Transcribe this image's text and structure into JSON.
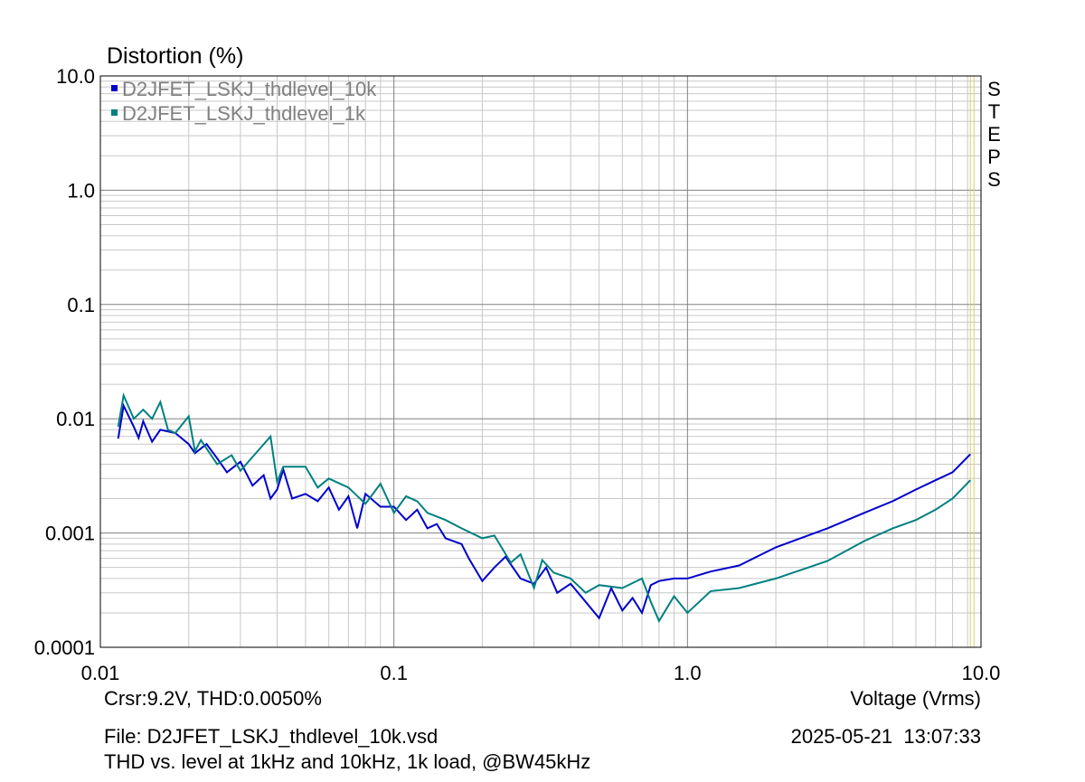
{
  "chart_data": {
    "type": "line",
    "title": "Distortion (%)",
    "x_label": "Voltage (Vrms)",
    "cursor_text": "Crsr:9.2V, THD:0.0050%",
    "cursor_x": 9.2,
    "side_label": "STEPS",
    "file_text": "File: D2JFET_LSKJ_thdlevel_10k.vsd",
    "timestamp": "2025-05-21  13:07:33",
    "subtitle": "THD vs. level at 1kHz and 10kHz, 1k load, @BW45kHz",
    "xscale": "log",
    "yscale": "log",
    "grid": true,
    "legend": "top-left",
    "xlim": [
      0.01,
      10
    ],
    "xticks": [
      0.01,
      0.1,
      {
        "value": 1,
        "label": "1.0"
      },
      {
        "value": 10,
        "label": "10.0"
      }
    ],
    "ylim": [
      0.0001,
      10
    ],
    "yticks": [
      {
        "value": 10,
        "label": "10.0"
      },
      {
        "value": 1,
        "label": "1.0"
      },
      0.1,
      0.01,
      0.001,
      0.0001
    ],
    "series": [
      {
        "name": "D2JFET_LSKJ_thdlevel_10k",
        "color": "#0000cc",
        "x": [
          0.0115,
          0.012,
          0.013,
          0.0135,
          0.014,
          0.015,
          0.016,
          0.018,
          0.02,
          0.021,
          0.023,
          0.025,
          0.027,
          0.03,
          0.033,
          0.036,
          0.038,
          0.04,
          0.042,
          0.045,
          0.05,
          0.055,
          0.06,
          0.065,
          0.07,
          0.075,
          0.08,
          0.09,
          0.1,
          0.11,
          0.12,
          0.13,
          0.14,
          0.15,
          0.17,
          0.18,
          0.2,
          0.22,
          0.24,
          0.27,
          0.3,
          0.33,
          0.36,
          0.4,
          0.45,
          0.5,
          0.55,
          0.6,
          0.65,
          0.7,
          0.75,
          0.8,
          0.9,
          1.0,
          1.2,
          1.5,
          2.0,
          3.0,
          4.0,
          5.0,
          6.0,
          7.0,
          8.0,
          9.2
        ],
        "values": [
          0.0067,
          0.013,
          0.0085,
          0.0068,
          0.0095,
          0.0063,
          0.008,
          0.0075,
          0.006,
          0.005,
          0.006,
          0.0045,
          0.0034,
          0.0042,
          0.0026,
          0.0032,
          0.002,
          0.0024,
          0.0036,
          0.002,
          0.0022,
          0.0019,
          0.0025,
          0.0016,
          0.0021,
          0.0011,
          0.0022,
          0.0017,
          0.0017,
          0.0013,
          0.0016,
          0.0011,
          0.0012,
          0.0009,
          0.0008,
          0.0006,
          0.00038,
          0.0005,
          0.00062,
          0.0004,
          0.00036,
          0.0005,
          0.0003,
          0.00036,
          0.00025,
          0.00018,
          0.00033,
          0.00021,
          0.00027,
          0.0002,
          0.00035,
          0.00038,
          0.0004,
          0.0004,
          0.00046,
          0.00052,
          0.00075,
          0.0011,
          0.0015,
          0.0019,
          0.0024,
          0.0029,
          0.0034,
          0.0049
        ]
      },
      {
        "name": "D2JFET_LSKJ_thdlevel_1k",
        "color": "#008080",
        "x": [
          0.0115,
          0.012,
          0.013,
          0.014,
          0.015,
          0.016,
          0.017,
          0.018,
          0.02,
          0.021,
          0.022,
          0.025,
          0.028,
          0.03,
          0.035,
          0.038,
          0.04,
          0.042,
          0.05,
          0.055,
          0.06,
          0.07,
          0.08,
          0.09,
          0.1,
          0.11,
          0.12,
          0.13,
          0.15,
          0.17,
          0.2,
          0.22,
          0.25,
          0.27,
          0.3,
          0.32,
          0.35,
          0.4,
          0.45,
          0.5,
          0.6,
          0.7,
          0.75,
          0.8,
          0.9,
          1.0,
          1.2,
          1.5,
          2.0,
          3.0,
          4.0,
          5.0,
          6.0,
          7.0,
          8.0,
          9.2
        ],
        "values": [
          0.0085,
          0.016,
          0.01,
          0.012,
          0.01,
          0.014,
          0.008,
          0.0075,
          0.0105,
          0.0052,
          0.0065,
          0.004,
          0.0048,
          0.0035,
          0.0055,
          0.007,
          0.0028,
          0.0038,
          0.0038,
          0.0025,
          0.003,
          0.0025,
          0.0018,
          0.0027,
          0.0015,
          0.0021,
          0.0019,
          0.0015,
          0.0013,
          0.0011,
          0.0009,
          0.00095,
          0.00055,
          0.00065,
          0.00033,
          0.00058,
          0.00045,
          0.0004,
          0.0003,
          0.00035,
          0.00033,
          0.0004,
          0.00025,
          0.00017,
          0.00028,
          0.0002,
          0.00031,
          0.00033,
          0.0004,
          0.00057,
          0.00085,
          0.0011,
          0.0013,
          0.0016,
          0.002,
          0.0029
        ]
      }
    ]
  }
}
